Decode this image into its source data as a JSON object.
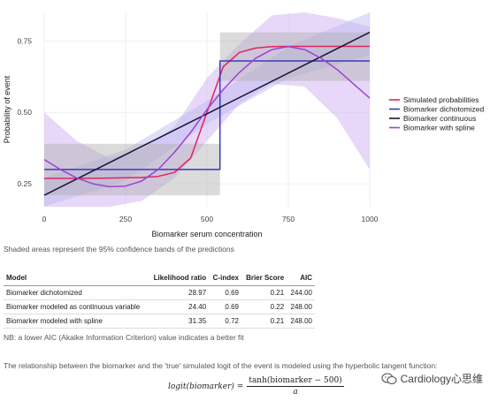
{
  "chart_data": {
    "type": "line",
    "xlabel": "Biomarker serum concentration",
    "ylabel": "Probability of event",
    "xlim": [
      0,
      1000
    ],
    "ylim": [
      0.17,
      0.85
    ],
    "x_ticks": [
      0,
      250,
      500,
      750,
      1000
    ],
    "x_tick_labels": [
      "0",
      "250",
      "500",
      "750",
      "1000"
    ],
    "y_ticks": [
      0.25,
      0.5,
      0.75
    ],
    "y_tick_labels": [
      "0.25",
      "0.50",
      "0.75"
    ],
    "grid": true,
    "legend_position": "right",
    "series": [
      {
        "name": "Simulated probabilities",
        "color": "#e0245e",
        "x": [
          0,
          100,
          200,
          300,
          350,
          400,
          450,
          500,
          550,
          600,
          650,
          700,
          750,
          800,
          900,
          1000
        ],
        "y": [
          0.269,
          0.269,
          0.27,
          0.272,
          0.276,
          0.29,
          0.34,
          0.5,
          0.66,
          0.71,
          0.725,
          0.73,
          0.731,
          0.731,
          0.731,
          0.731
        ]
      },
      {
        "name": "Biomarker dichotomized",
        "color": "#3b3bb8",
        "x": [
          0,
          540,
          540,
          1000
        ],
        "y": [
          0.3,
          0.3,
          0.68,
          0.68
        ]
      },
      {
        "name": "Biomarker continuous",
        "color": "#1a1438",
        "x": [
          0,
          1000
        ],
        "y": [
          0.21,
          0.78
        ]
      },
      {
        "name": "Biomarker with spline",
        "color": "#9b43d6",
        "x": [
          0,
          50,
          100,
          150,
          200,
          250,
          300,
          350,
          400,
          450,
          500,
          550,
          600,
          650,
          700,
          750,
          800,
          850,
          900,
          950,
          1000
        ],
        "y": [
          0.335,
          0.3,
          0.27,
          0.25,
          0.24,
          0.242,
          0.26,
          0.3,
          0.36,
          0.43,
          0.51,
          0.58,
          0.64,
          0.69,
          0.72,
          0.73,
          0.72,
          0.69,
          0.65,
          0.6,
          0.55
        ]
      }
    ],
    "bands": [
      {
        "series": "Biomarker with spline",
        "color": "#c9a8f2",
        "x": [
          0,
          100,
          200,
          300,
          400,
          500,
          600,
          700,
          800,
          900,
          1000
        ],
        "lower": [
          0.17,
          0.17,
          0.17,
          0.19,
          0.27,
          0.4,
          0.53,
          0.6,
          0.59,
          0.48,
          0.3
        ],
        "upper": [
          0.5,
          0.4,
          0.34,
          0.37,
          0.45,
          0.62,
          0.74,
          0.84,
          0.85,
          0.83,
          0.8
        ]
      },
      {
        "series": "Biomarker continuous",
        "color": "#b8b8ee",
        "x": [
          0,
          250,
          500,
          750,
          1000
        ],
        "lower": [
          0.17,
          0.26,
          0.46,
          0.62,
          0.7
        ],
        "upper": [
          0.27,
          0.37,
          0.54,
          0.73,
          0.85
        ]
      },
      {
        "series": "Biomarker dichotomized",
        "color": "#b0b0b0",
        "x": [
          0,
          540,
          540,
          1000
        ],
        "lower": [
          0.21,
          0.21,
          0.61,
          0.61
        ],
        "upper": [
          0.39,
          0.39,
          0.78,
          0.78
        ]
      }
    ]
  },
  "notes": {
    "bands": "Shaded areas represent the 95% confidence bands of the predictions",
    "aic": "NB: a lower AIC (Akaike Information Criterion) value indicates a better fit",
    "relationship": "The relationship between the biomarker and the 'true' simulated logit of the event is modeled using the hyperbolic tangent function:"
  },
  "table": {
    "headers": [
      "Model",
      "Likelihood ratio",
      "C-index",
      "Brier Score",
      "AIC"
    ],
    "rows": [
      [
        "Biomarker dichotomized",
        "28.97",
        "0.69",
        "0.21",
        "244.00"
      ],
      [
        "Biomarker modeled as continuous variable",
        "24.40",
        "0.69",
        "0.22",
        "248.00"
      ],
      [
        "Biomarker modeled with spline",
        "31.35",
        "0.72",
        "0.21",
        "248.00"
      ]
    ]
  },
  "formula": {
    "lhs": "logit(biomarker) =",
    "numerator": "tanh(biomarker − 500)",
    "denominator": "a"
  },
  "watermark": {
    "text": "Cardiology心思维"
  }
}
